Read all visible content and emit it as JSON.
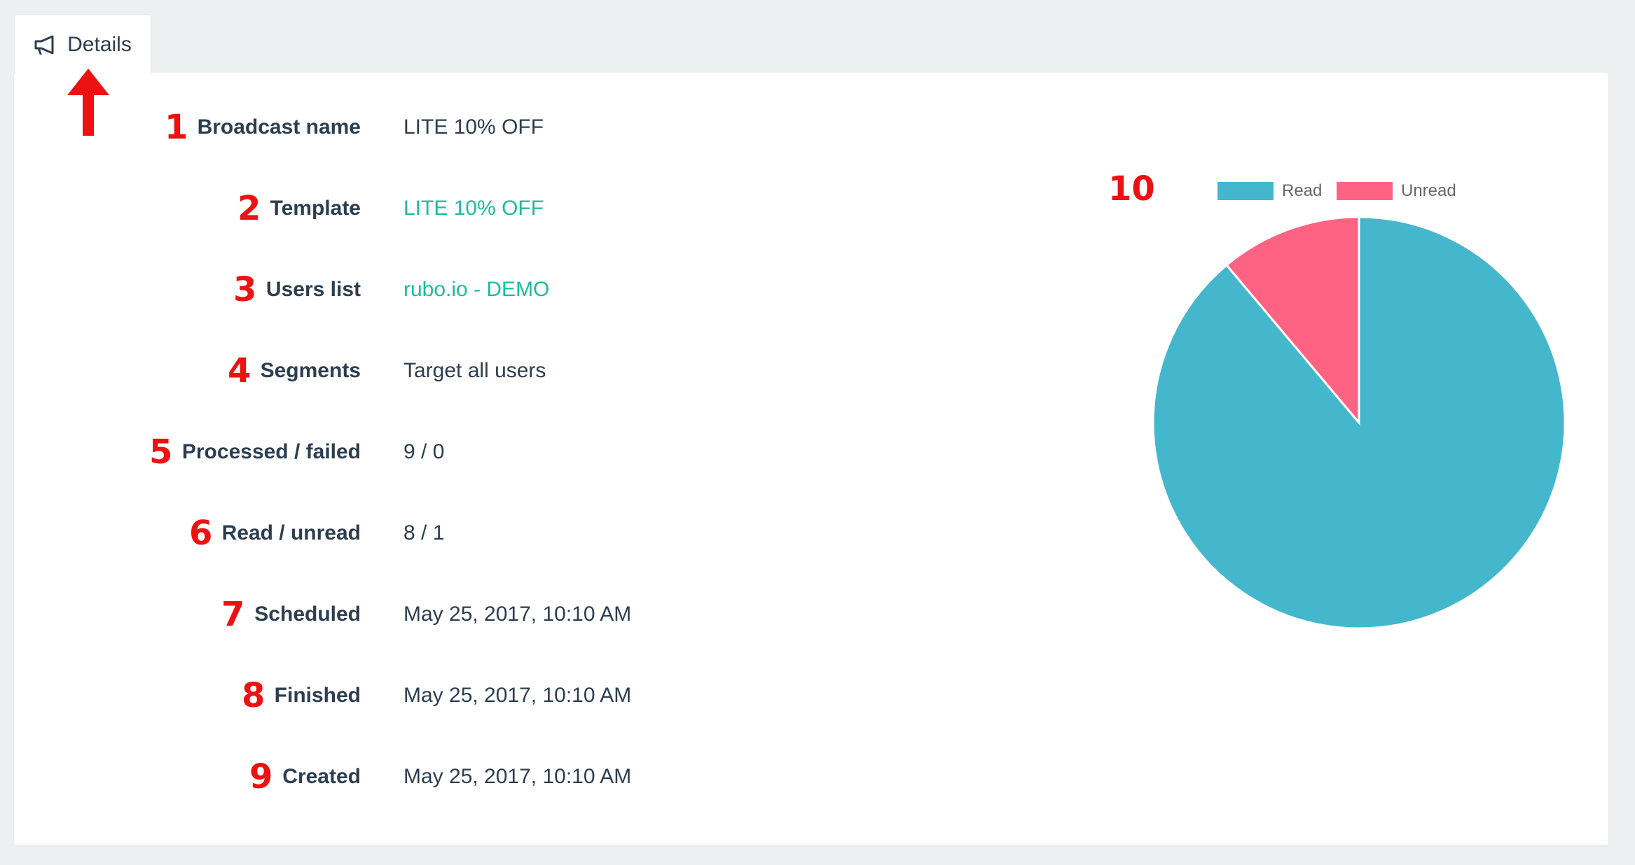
{
  "tab": {
    "label": "Details",
    "icon": "megaphone-icon"
  },
  "details": [
    {
      "marker": "1",
      "label": "Broadcast name",
      "value": "LITE 10% OFF",
      "link": false
    },
    {
      "marker": "2",
      "label": "Template",
      "value": "LITE 10% OFF",
      "link": true
    },
    {
      "marker": "3",
      "label": "Users list",
      "value": "rubo.io - DEMO",
      "link": true
    },
    {
      "marker": "4",
      "label": "Segments",
      "value": "Target all users",
      "link": false
    },
    {
      "marker": "5",
      "label": "Processed / failed",
      "value": "9 / 0",
      "link": false
    },
    {
      "marker": "6",
      "label": "Read / unread",
      "value": "8 / 1",
      "link": false
    },
    {
      "marker": "7",
      "label": "Scheduled",
      "value": "May 25, 2017, 10:10 AM",
      "link": false
    },
    {
      "marker": "8",
      "label": "Finished",
      "value": "May 25, 2017, 10:10 AM",
      "link": false
    },
    {
      "marker": "9",
      "label": "Created",
      "value": "May 25, 2017, 10:10 AM",
      "link": false
    }
  ],
  "chart_marker": "10",
  "colors": {
    "annotation": "#ee1111",
    "link": "#1abc9c",
    "read": "#45b7cd",
    "unread": "#ff6384",
    "text": "#2c3e50"
  },
  "chart_data": {
    "type": "pie",
    "categories": [
      "Read",
      "Unread"
    ],
    "values": [
      8,
      1
    ],
    "colors": [
      "#45b7cd",
      "#ff6384"
    ],
    "legend": "top",
    "title": ""
  }
}
